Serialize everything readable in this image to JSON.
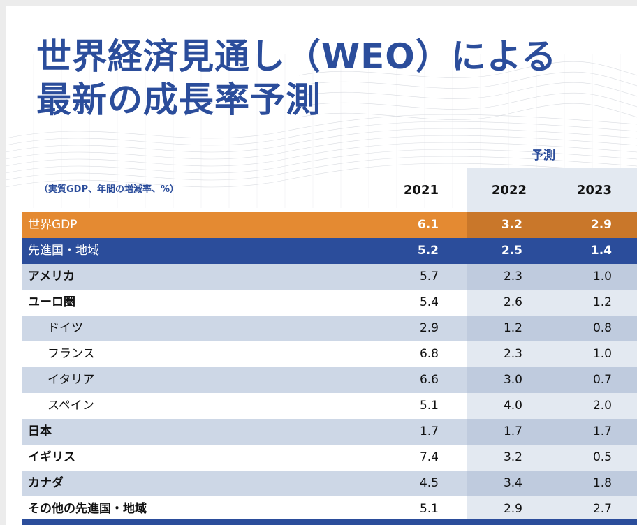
{
  "title": {
    "line1": "世界経済見通し（WEO）による",
    "line2": "最新の成長率予測"
  },
  "forecast_label": "予測",
  "unit_note": "（実質GDP、年間の増減率、%）",
  "years": [
    "2021",
    "2022",
    "2023"
  ],
  "rows": [
    {
      "label": "世界GDP",
      "values": [
        "6.1",
        "3.2",
        "2.9"
      ]
    },
    {
      "label": "先進国・地域",
      "values": [
        "5.2",
        "2.5",
        "1.4"
      ]
    },
    {
      "label": "アメリカ",
      "values": [
        "5.7",
        "2.3",
        "1.0"
      ]
    },
    {
      "label": "ユーロ圏",
      "values": [
        "5.4",
        "2.6",
        "1.2"
      ]
    },
    {
      "label": "ドイツ",
      "values": [
        "2.9",
        "1.2",
        "0.8"
      ]
    },
    {
      "label": "フランス",
      "values": [
        "6.8",
        "2.3",
        "1.0"
      ]
    },
    {
      "label": "イタリア",
      "values": [
        "6.6",
        "3.0",
        "0.7"
      ]
    },
    {
      "label": "スペイン",
      "values": [
        "5.1",
        "4.0",
        "2.0"
      ]
    },
    {
      "label": "日本",
      "values": [
        "1.7",
        "1.7",
        "1.7"
      ]
    },
    {
      "label": "イギリス",
      "values": [
        "7.4",
        "3.2",
        "0.5"
      ]
    },
    {
      "label": "カナダ",
      "values": [
        "4.5",
        "3.4",
        "1.8"
      ]
    },
    {
      "label": "その他の先進国・地域",
      "values": [
        "5.1",
        "2.9",
        "2.7"
      ]
    }
  ],
  "colors": {
    "title_blue": "#2b4d9b",
    "world_orange": "#e48a32",
    "row_blue": "#cdd7e6"
  }
}
